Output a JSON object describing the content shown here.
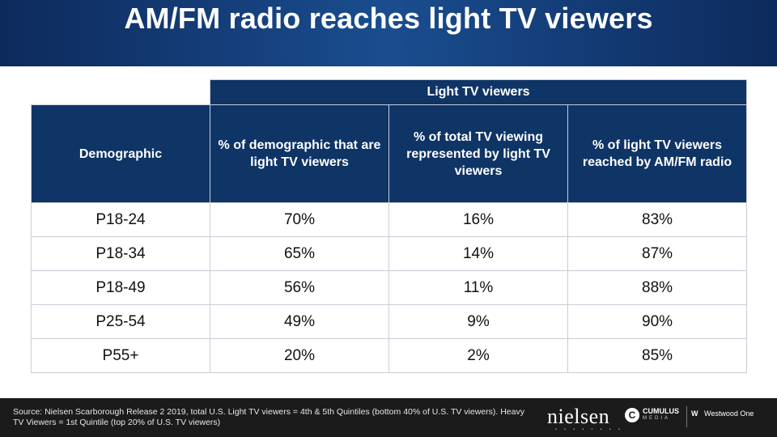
{
  "title": "AM/FM radio reaches light TV viewers",
  "table": {
    "group_header": "Light TV viewers",
    "columns": [
      "Demographic",
      "% of demographic that are light TV viewers",
      "% of total TV viewing represented by light TV viewers",
      "% of light TV viewers reached by AM/FM radio"
    ],
    "rows": [
      [
        "P18-24",
        "70%",
        "16%",
        "83%"
      ],
      [
        "P18-34",
        "65%",
        "14%",
        "87%"
      ],
      [
        "P18-49",
        "56%",
        "11%",
        "88%"
      ],
      [
        "P25-54",
        "49%",
        "9%",
        "90%"
      ],
      [
        "P55+",
        "20%",
        "2%",
        "85%"
      ]
    ]
  },
  "footer": {
    "source_text": "Source: Nielsen Scarborough Release 2 2019, total U.S. Light TV viewers = 4th & 5th Quintiles (bottom 40% of U.S. TV viewers). Heavy TV Viewers = 1st Quintile (top 20% of U.S. TV viewers)",
    "logos": {
      "nielsen": "nielsen",
      "cumulus": "CUMULUS",
      "cumulus_sub": "MEDIA",
      "westwood": "Westwood One"
    }
  }
}
